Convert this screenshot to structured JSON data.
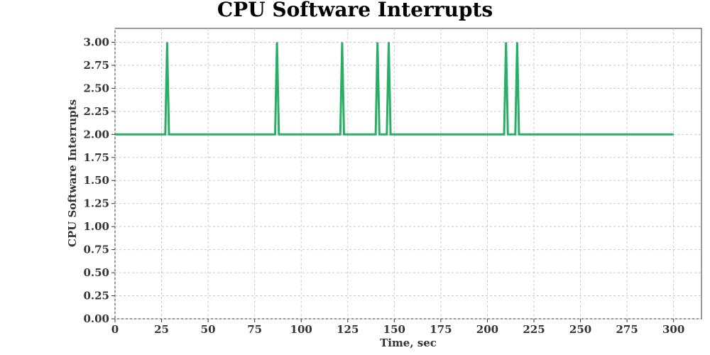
{
  "chart_data": {
    "type": "line",
    "title": "CPU Software Interrupts",
    "xlabel": "Time, sec",
    "ylabel": "CPU Software Interrupts",
    "xlim": [
      0,
      315
    ],
    "ylim": [
      0,
      3.15
    ],
    "xticks": [
      0,
      25,
      50,
      75,
      100,
      125,
      150,
      175,
      200,
      225,
      250,
      275,
      300
    ],
    "yticks": [
      0.0,
      0.25,
      0.5,
      0.75,
      1.0,
      1.25,
      1.5,
      1.75,
      2.0,
      2.25,
      2.5,
      2.75,
      3.0
    ],
    "xtick_labels": [
      "0",
      "25",
      "50",
      "75",
      "100",
      "125",
      "150",
      "175",
      "200",
      "225",
      "250",
      "275",
      "300"
    ],
    "ytick_labels": [
      "0.00",
      "0.25",
      "0.50",
      "0.75",
      "1.00",
      "1.25",
      "1.50",
      "1.75",
      "2.00",
      "2.25",
      "2.50",
      "2.75",
      "3.00"
    ],
    "grid": true,
    "series": [
      {
        "color": "#2aae67",
        "x": [
          0,
          27,
          28,
          29,
          86,
          87,
          88,
          121,
          122,
          123,
          140,
          141,
          142,
          146,
          147,
          148,
          209,
          210,
          211,
          215,
          216,
          217,
          300
        ],
        "y": [
          2,
          2,
          3,
          2,
          2,
          3,
          2,
          2,
          3,
          2,
          2,
          3,
          2,
          2,
          3,
          2,
          2,
          3,
          2,
          2,
          3,
          2,
          2
        ]
      }
    ]
  }
}
